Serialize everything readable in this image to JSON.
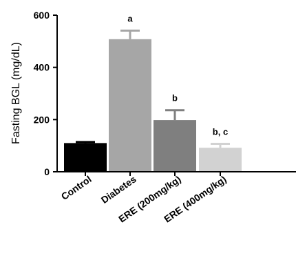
{
  "chart_data": {
    "type": "bar",
    "ylabel": "Fasting BGL (mg/dL)",
    "xlabel": "",
    "ylim": [
      0,
      600
    ],
    "yticks": [
      0,
      200,
      400,
      600
    ],
    "categories": [
      "Control",
      "Diabetes",
      "ERE (200mg/kg)",
      "ERE (400mg/kg)"
    ],
    "values": [
      110,
      508,
      198,
      92
    ],
    "errors": [
      4,
      33,
      38,
      15
    ],
    "annotations": [
      "",
      "a",
      "b",
      "b, c"
    ],
    "colors": [
      "#000000",
      "#a6a6a6",
      "#7f7f7f",
      "#d2d2d2"
    ],
    "grid": false,
    "error_bars": true
  }
}
